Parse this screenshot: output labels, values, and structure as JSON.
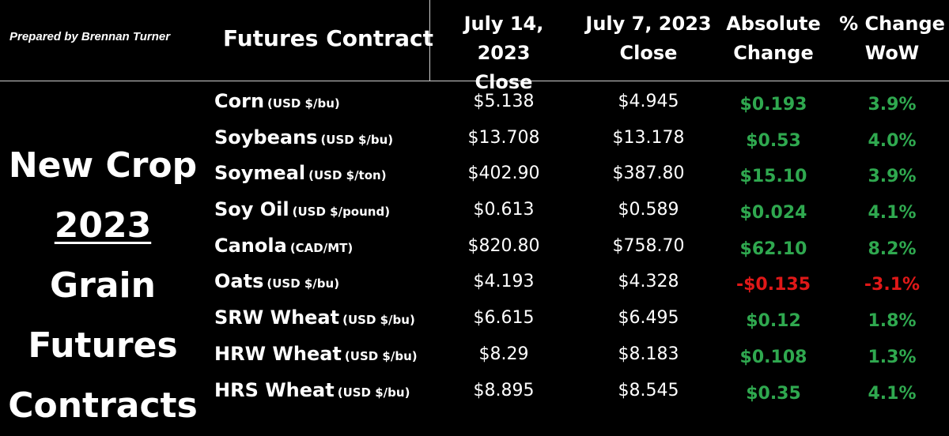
{
  "credit": "Prepared by Brennan Turner",
  "title": {
    "line1": "New Crop",
    "year": "2023",
    "line2_rest": " Grain",
    "line3": "Futures",
    "line4": "Contracts"
  },
  "headers": {
    "contract": "Futures Contract",
    "date1_l1": "July 14, 2023",
    "date1_l2": "Close",
    "date2_l1": "July 7, 2023",
    "date2_l2": "Close",
    "abs_l1": "Absolute",
    "abs_l2": "Change",
    "pct_l1": "% Change",
    "pct_l2": "WoW"
  },
  "colors": {
    "positive": "#2fa84f",
    "negative": "#e01818"
  },
  "rows": [
    {
      "name": "Corn",
      "unit": "(USD $/bu)",
      "jul14": "$5.138",
      "jul7": "$4.945",
      "abs": "$0.193",
      "pct": "3.9%",
      "dir": "pos"
    },
    {
      "name": "Soybeans",
      "unit": "(USD $/bu)",
      "jul14": "$13.708",
      "jul7": "$13.178",
      "abs": "$0.53",
      "pct": "4.0%",
      "dir": "pos"
    },
    {
      "name": "Soymeal",
      "unit": "(USD $/ton)",
      "jul14": "$402.90",
      "jul7": "$387.80",
      "abs": "$15.10",
      "pct": "3.9%",
      "dir": "pos"
    },
    {
      "name": "Soy Oil",
      "unit": "(USD $/pound)",
      "jul14": "$0.613",
      "jul7": "$0.589",
      "abs": "$0.024",
      "pct": "4.1%",
      "dir": "pos"
    },
    {
      "name": "Canola",
      "unit": "(CAD/MT)",
      "jul14": "$820.80",
      "jul7": "$758.70",
      "abs": "$62.10",
      "pct": "8.2%",
      "dir": "pos"
    },
    {
      "name": "Oats",
      "unit": "(USD $/bu)",
      "jul14": "$4.193",
      "jul7": "$4.328",
      "abs": "-$0.135",
      "pct": "-3.1%",
      "dir": "neg"
    },
    {
      "name": "SRW Wheat",
      "unit": "(USD $/bu)",
      "jul14": "$6.615",
      "jul7": "$6.495",
      "abs": "$0.12",
      "pct": "1.8%",
      "dir": "pos"
    },
    {
      "name": "HRW Wheat",
      "unit": "(USD $/bu)",
      "jul14": "$8.29",
      "jul7": "$8.183",
      "abs": "$0.108",
      "pct": "1.3%",
      "dir": "pos"
    },
    {
      "name": "HRS Wheat",
      "unit": "(USD $/bu)",
      "jul14": "$8.895",
      "jul7": "$8.545",
      "abs": "$0.35",
      "pct": "4.1%",
      "dir": "pos"
    }
  ]
}
